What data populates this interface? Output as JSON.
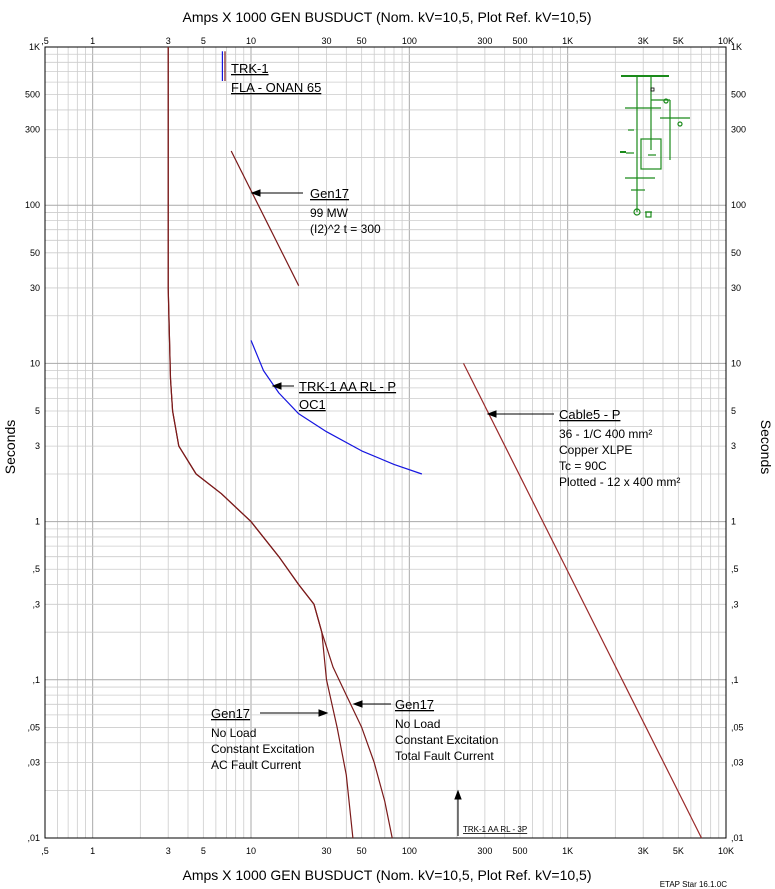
{
  "chart_data": {
    "type": "line",
    "title_top": "Amps  X  1000   GEN BUSDUCT (Nom. kV=10,5, Plot Ref. kV=10,5)",
    "title_bottom": "Amps  X  1000   GEN BUSDUCT (Nom. kV=10,5, Plot Ref. kV=10,5)",
    "ylabel": "Seconds",
    "x_scale": "log",
    "y_scale": "log",
    "xlim": [
      0.5,
      10000
    ],
    "ylim": [
      0.01,
      1000
    ],
    "grid": true,
    "x_ticks": [
      {
        "v": 0.5,
        "label": ",5"
      },
      {
        "v": 1,
        "label": "1"
      },
      {
        "v": 3,
        "label": "3"
      },
      {
        "v": 5,
        "label": "5"
      },
      {
        "v": 10,
        "label": "10"
      },
      {
        "v": 30,
        "label": "30"
      },
      {
        "v": 50,
        "label": "50"
      },
      {
        "v": 100,
        "label": "100"
      },
      {
        "v": 300,
        "label": "300"
      },
      {
        "v": 500,
        "label": "500"
      },
      {
        "v": 1000,
        "label": "1K"
      },
      {
        "v": 3000,
        "label": "3K"
      },
      {
        "v": 5000,
        "label": "5K"
      },
      {
        "v": 10000,
        "label": "10K"
      }
    ],
    "y_ticks": [
      {
        "v": 1000,
        "label": "1K"
      },
      {
        "v": 500,
        "label": "500"
      },
      {
        "v": 300,
        "label": "300"
      },
      {
        "v": 100,
        "label": "100"
      },
      {
        "v": 50,
        "label": "50"
      },
      {
        "v": 30,
        "label": "30"
      },
      {
        "v": 10,
        "label": "10"
      },
      {
        "v": 5,
        "label": "5"
      },
      {
        "v": 3,
        "label": "3"
      },
      {
        "v": 1,
        "label": "1"
      },
      {
        "v": 0.5,
        "label": ",5"
      },
      {
        "v": 0.3,
        "label": ",3"
      },
      {
        "v": 0.1,
        "label": ",1"
      },
      {
        "v": 0.05,
        "label": ",05"
      },
      {
        "v": 0.03,
        "label": ",03"
      },
      {
        "v": 0.01,
        "label": ",01"
      }
    ],
    "series": [
      {
        "name": "Gen17 AC Fault Current",
        "color": "#7b1a1a",
        "x": [
          3.0,
          3.0,
          3.1,
          3.2,
          3.5,
          4.5,
          6.5,
          10,
          15,
          20,
          25,
          28,
          30,
          35,
          40,
          44
        ],
        "y": [
          1000,
          30,
          8,
          5,
          3,
          2,
          1.5,
          1,
          0.6,
          0.4,
          0.3,
          0.2,
          0.1,
          0.05,
          0.025,
          0.01
        ]
      },
      {
        "name": "Gen17 Total Fault Current",
        "color": "#7b1a1a",
        "x": [
          3.0,
          3.0,
          3.1,
          3.2,
          3.5,
          4.5,
          6.5,
          10,
          15,
          20,
          25,
          28,
          33,
          40,
          50,
          60,
          70,
          78
        ],
        "y": [
          1000,
          30,
          8,
          5,
          3,
          2,
          1.5,
          1,
          0.6,
          0.4,
          0.3,
          0.2,
          0.12,
          0.08,
          0.05,
          0.03,
          0.017,
          0.01
        ]
      },
      {
        "name": "Gen17 (I2)^2 t = 300",
        "color": "#7b1a1a",
        "x": [
          7.5,
          20
        ],
        "y": [
          220,
          31
        ]
      },
      {
        "name": "TRK-1 AA RL - P OC1",
        "color": "#1515e0",
        "x": [
          10,
          12,
          15,
          20,
          30,
          50,
          80,
          120
        ],
        "y": [
          14,
          9,
          6.5,
          4.8,
          3.7,
          2.8,
          2.3,
          2.0
        ]
      },
      {
        "name": "Cable5 - P",
        "color": "#9a2a2a",
        "x": [
          220,
          7000
        ],
        "y": [
          10,
          0.01
        ]
      },
      {
        "name": "TRK-1 FLA",
        "color": "#1515e0",
        "x": [
          6.6,
          6.6
        ],
        "y": [
          940,
          610
        ]
      },
      {
        "name": "TRK-1 FLA 2",
        "color": "#7b1a1a",
        "x": [
          6.85,
          6.85
        ],
        "y": [
          940,
          610
        ]
      }
    ],
    "annotations": {
      "trk1": {
        "lines": [
          "TRK-1",
          "FLA - ONAN 65"
        ]
      },
      "gen17_i2t": {
        "lines": [
          "Gen17",
          "99 MW",
          "(I2)^2 t = 300"
        ]
      },
      "trk1_aarl": {
        "lines": [
          "TRK-1 AA RL - P",
          "OC1"
        ]
      },
      "cable5": {
        "lines": [
          "Cable5 - P",
          "36 - 1/C 400 mm²",
          "Copper  XLPE",
          "Tc = 90C",
          "Plotted - 12 x 400 mm²"
        ]
      },
      "gen17_ac": {
        "lines": [
          "Gen17",
          "No Load",
          "Constant Excitation",
          "AC Fault Current"
        ]
      },
      "gen17_total": {
        "lines": [
          "Gen17",
          "No Load",
          "Constant Excitation",
          "Total Fault Current"
        ]
      },
      "trk1_3p": {
        "label": "TRK-1 AA RL - 3P"
      }
    },
    "footer": "ETAP Star 16.1.0C",
    "colors": {
      "grid": "#a9a9a9",
      "minor_grid": "#cccccc",
      "gen": "#7b1a1a",
      "relay": "#1515e0",
      "cable": "#9a2a2a",
      "diagram": "#1a8a1a"
    }
  }
}
